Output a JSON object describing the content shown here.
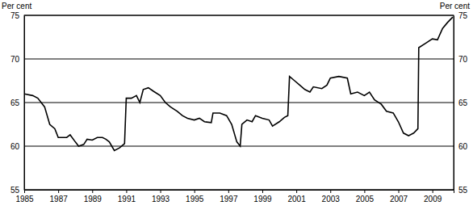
{
  "chart_data": {
    "type": "line",
    "y_label": "Per cent",
    "y2_label": "Per cent",
    "color": "#000000",
    "grid": true,
    "xlim": [
      1985,
      2010.25
    ],
    "xticks": [
      1985,
      1987,
      1989,
      1991,
      1993,
      1995,
      1997,
      1999,
      2001,
      2003,
      2005,
      2007,
      2009
    ],
    "ylim": [
      55,
      75
    ],
    "yticks": [
      55,
      60,
      65,
      70,
      75
    ],
    "y2lim": [
      55,
      75
    ],
    "y2ticks": [
      55,
      60,
      65,
      70,
      75
    ],
    "x": [
      1985.0,
      1985.5,
      1985.8,
      1986.2,
      1986.5,
      1986.8,
      1987.0,
      1987.5,
      1987.7,
      1988.0,
      1988.2,
      1988.5,
      1988.7,
      1989.0,
      1989.3,
      1989.6,
      1989.8,
      1990.0,
      1990.3,
      1990.6,
      1990.9,
      1991.0,
      1991.3,
      1991.6,
      1991.8,
      1992.0,
      1992.3,
      1992.6,
      1993.0,
      1993.3,
      1993.6,
      1994.0,
      1994.3,
      1994.6,
      1995.0,
      1995.3,
      1995.6,
      1996.0,
      1996.1,
      1996.5,
      1996.9,
      1997.2,
      1997.5,
      1997.7,
      1997.8,
      1998.1,
      1998.4,
      1998.6,
      1999.0,
      1999.4,
      1999.6,
      2000.0,
      2000.3,
      2000.5,
      2000.6,
      2000.9,
      2001.2,
      2001.5,
      2001.8,
      2002.0,
      2002.5,
      2002.8,
      2003.0,
      2003.5,
      2004.0,
      2004.2,
      2004.6,
      2005.0,
      2005.3,
      2005.6,
      2006.0,
      2006.3,
      2006.7,
      2007.0,
      2007.3,
      2007.6,
      2007.9,
      2008.15,
      2008.2,
      2008.6,
      2009.0,
      2009.3,
      2009.6,
      2009.9,
      2010.2
    ],
    "values": [
      66.0,
      65.8,
      65.5,
      64.5,
      62.5,
      62.0,
      61.0,
      61.0,
      61.3,
      60.5,
      60.0,
      60.2,
      60.8,
      60.7,
      61.0,
      61.0,
      60.8,
      60.5,
      59.5,
      59.8,
      60.3,
      65.5,
      65.5,
      65.8,
      65.0,
      66.5,
      66.7,
      66.3,
      65.8,
      65.0,
      64.5,
      64.0,
      63.5,
      63.2,
      63.0,
      63.2,
      62.8,
      62.7,
      63.8,
      63.8,
      63.5,
      62.5,
      60.5,
      60.0,
      62.5,
      63.0,
      62.8,
      63.5,
      63.2,
      63.0,
      62.3,
      62.8,
      63.3,
      63.5,
      68.0,
      67.5,
      67.0,
      66.5,
      66.2,
      66.8,
      66.6,
      67.0,
      67.8,
      68.0,
      67.8,
      66.0,
      66.2,
      65.8,
      66.2,
      65.3,
      64.8,
      64.0,
      63.8,
      62.8,
      61.5,
      61.2,
      61.5,
      62.0,
      71.3,
      71.8,
      72.3,
      72.2,
      73.5,
      74.2,
      74.8
    ]
  }
}
